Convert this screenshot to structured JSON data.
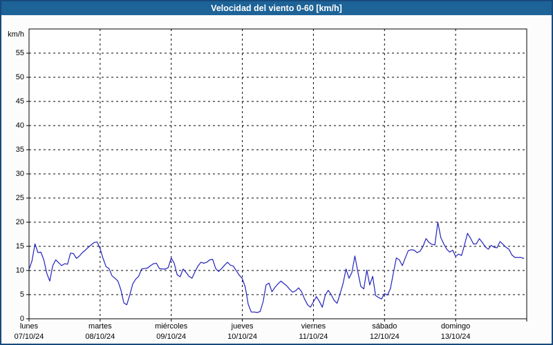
{
  "header": {
    "title": "Velocidad del viento 0-60 [km/h]"
  },
  "colors": {
    "header_bg": "#1d6397",
    "header_text": "#ffffff",
    "window_border": "#17497c",
    "page_bg": "#fcfcfd",
    "plot_bg": "#ffffff",
    "grid": "#000000",
    "axis_text": "#000000",
    "line": "#2222bb"
  },
  "chart_data": {
    "type": "line",
    "title": "Velocidad del viento 0-60 [km/h]",
    "unit_label": "km/h",
    "ylabel": "km/h",
    "ylim": [
      0,
      60
    ],
    "yticks": [
      0,
      5,
      10,
      15,
      20,
      25,
      30,
      35,
      40,
      45,
      50,
      55
    ],
    "grid": "dashed",
    "legend_position": "none",
    "points_per_day": 24,
    "days": [
      {
        "weekday": "lunes",
        "date": "07/10/24",
        "values": [
          10.2,
          12.0,
          15.5,
          13.7,
          13.8,
          12.2,
          9.4,
          7.8,
          11.0,
          12.2,
          11.6,
          11.0,
          11.4,
          11.3,
          13.6,
          13.5,
          12.5,
          13.0,
          13.7,
          14.2,
          14.8,
          15.3,
          15.8,
          15.9
        ]
      },
      {
        "weekday": "martes",
        "date": "08/10/24",
        "values": [
          14.5,
          12.5,
          10.8,
          10.4,
          8.9,
          8.4,
          7.8,
          6.0,
          3.3,
          2.9,
          4.9,
          7.2,
          8.2,
          8.8,
          10.3,
          10.4,
          10.5,
          11.0,
          11.4,
          11.5,
          10.4,
          10.3,
          10.3,
          10.6
        ]
      },
      {
        "weekday": "miércoles",
        "date": "09/10/24",
        "values": [
          12.6,
          11.5,
          9.1,
          8.7,
          10.3,
          9.6,
          8.8,
          8.4,
          9.7,
          10.9,
          11.7,
          11.5,
          11.7,
          12.2,
          12.3,
          10.4,
          9.8,
          10.4,
          11.1,
          11.7,
          11.1,
          10.9,
          9.9,
          9.0
        ]
      },
      {
        "weekday": "jueves",
        "date": "10/10/24",
        "values": [
          8.3,
          6.5,
          3.0,
          1.4,
          1.4,
          1.3,
          1.5,
          3.5,
          7.0,
          7.4,
          5.6,
          6.5,
          7.2,
          7.8,
          7.3,
          6.8,
          6.1,
          5.5,
          5.8,
          6.4,
          5.6,
          4.1,
          2.9,
          2.4
        ]
      },
      {
        "weekday": "viernes",
        "date": "11/10/24",
        "values": [
          3.5,
          4.6,
          3.6,
          2.4,
          4.9,
          5.9,
          5.0,
          3.8,
          3.2,
          5.2,
          7.3,
          10.3,
          8.4,
          9.6,
          13.0,
          9.7,
          6.7,
          6.2,
          10.1,
          7.0,
          8.8,
          4.8,
          4.4,
          4.1
        ]
      },
      {
        "weekday": "sábado",
        "date": "12/10/24",
        "values": [
          5.2,
          4.9,
          6.3,
          9.5,
          12.6,
          12.2,
          11.0,
          12.6,
          14.1,
          14.3,
          14.2,
          13.7,
          14.0,
          15.0,
          16.6,
          15.8,
          15.4,
          15.3,
          20.0,
          16.8,
          15.5,
          14.4,
          13.8,
          14.2
        ]
      },
      {
        "weekday": "domingo",
        "date": "13/10/24",
        "values": [
          12.9,
          13.4,
          13.1,
          15.3,
          17.7,
          16.7,
          15.5,
          15.5,
          16.6,
          15.8,
          14.9,
          14.4,
          15.2,
          14.8,
          14.7,
          16.0,
          15.4,
          14.8,
          14.4,
          13.2,
          12.7,
          12.7,
          12.7,
          12.5
        ]
      }
    ]
  }
}
